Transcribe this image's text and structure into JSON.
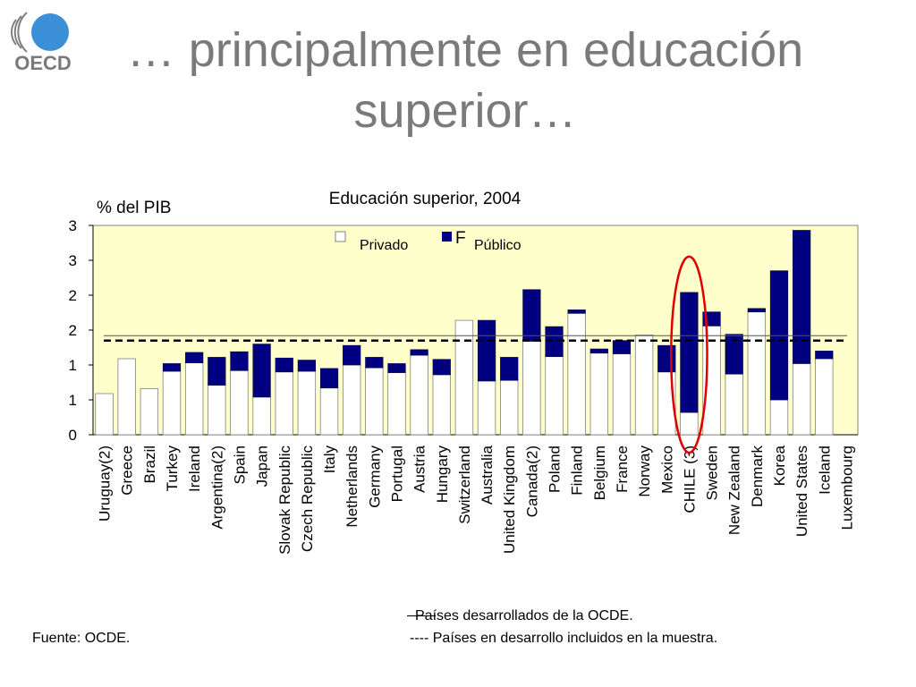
{
  "slide": {
    "title_line1": "… principalmente en educación",
    "title_line2": "superior…",
    "logo_text": "OECD",
    "source": "Fuente: OCDE.",
    "note_developed": "Países desarrollados de la OCDE.",
    "note_developing": "---- Países en desarrollo incluidos en la muestra."
  },
  "colors": {
    "title": "#7a7a7a",
    "plot_background": "#ffffcc",
    "public": "#000080",
    "private": "#ffffff",
    "chile_highlight": "#e00000",
    "logo_blue": "#3b8fd6"
  },
  "chart_data": {
    "type": "bar",
    "stacked": true,
    "title": "Educación superior, 2004",
    "ylabel": "% del PIB",
    "ylim": [
      0,
      3
    ],
    "yticks": [
      0,
      0.5,
      1,
      1.5,
      2,
      2.5,
      3
    ],
    "ytick_labels": [
      "0",
      "1",
      "1",
      "2",
      "2",
      "3",
      "3"
    ],
    "legend": {
      "position": "top-center",
      "stray_glyph": "F"
    },
    "categories": [
      "Uruguay(2)",
      "Greece",
      "Brazil",
      "Turkey",
      "Ireland",
      "Argentina(2)",
      "Spain",
      "Japan",
      "Slovak Republic",
      "Czech Republic",
      "Italy",
      "Netherlands",
      "Germany",
      "Portugal",
      "Austria",
      "Hungary",
      "Switzerland",
      "Australia",
      "United Kingdom",
      "Canada(2)",
      "Poland",
      "Finland",
      "Belgium",
      "France",
      "Norway",
      "Mexico",
      "CHILE (3)",
      "Sweden",
      "New Zealand",
      "Denmark",
      "Korea",
      "United States",
      "Iceland",
      "Luxembourg"
    ],
    "series": [
      {
        "name": "Privado",
        "values": [
          0.59,
          1.09,
          0.66,
          0.91,
          1.03,
          0.71,
          0.92,
          0.54,
          0.9,
          0.91,
          0.67,
          1.0,
          0.96,
          0.89,
          1.14,
          0.86,
          1.64,
          0.77,
          0.78,
          1.34,
          1.12,
          1.74,
          1.17,
          1.16,
          1.43,
          0.9,
          0.32,
          1.56,
          0.87,
          1.76,
          0.5,
          1.02,
          1.09,
          0
        ]
      },
      {
        "name": "Público",
        "values": [
          0,
          0,
          0,
          0.11,
          0.15,
          0.4,
          0.27,
          0.76,
          0.2,
          0.16,
          0.28,
          0.28,
          0.15,
          0.13,
          0.08,
          0.22,
          0,
          0.87,
          0.33,
          0.74,
          0.43,
          0.05,
          0.06,
          0.19,
          0,
          0.38,
          1.72,
          0.2,
          0.57,
          0.05,
          1.85,
          1.91,
          0.11,
          0
        ]
      }
    ],
    "reference_lines": [
      {
        "label": "Países desarrollados de la OCDE.",
        "style": "solid",
        "value": 1.42
      },
      {
        "label": "Países en desarrollo incluidos en la muestra.",
        "style": "dashed",
        "value": 1.35
      }
    ],
    "highlight": "CHILE (3)",
    "grid": false
  }
}
